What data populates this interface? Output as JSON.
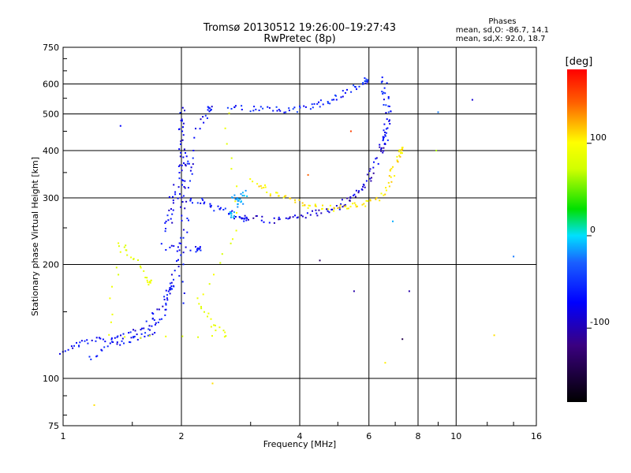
{
  "header": {
    "line1": "Tromsø 20130512 19:26:00–19:27:43",
    "line2": "RwPretec (8p)"
  },
  "stats": {
    "title": "Phases",
    "line_o": "mean, sd,O: -86.7, 14.1",
    "line_x": "mean, sd,X:  92.0, 18.7"
  },
  "chart_data": {
    "type": "scatter",
    "title": "Tromsø 20130512 19:26:00–19:27:43",
    "subtitle": "RwPretec (8p)",
    "xlabel": "Frequency [MHz]",
    "ylabel": "Stationary phase Virtual Height [km]",
    "x_scale": "log",
    "y_scale": "log",
    "xlim": [
      1,
      16
    ],
    "ylim": [
      75,
      750
    ],
    "x_ticks": [
      1,
      2,
      4,
      6,
      8,
      10,
      16
    ],
    "y_ticks": [
      75,
      100,
      200,
      300,
      400,
      500,
      600,
      750
    ],
    "grid": true,
    "colorbar": {
      "label": "[deg]",
      "range": [
        -180,
        180
      ],
      "ticks": [
        100,
        0,
        -100
      ]
    },
    "traces": [
      {
        "phase": -100,
        "points": [
          [
            1.0,
            118
          ],
          [
            1.08,
            123
          ],
          [
            1.2,
            126
          ],
          [
            1.35,
            128
          ],
          [
            1.5,
            131
          ],
          [
            1.65,
            140
          ],
          [
            1.8,
            160
          ],
          [
            1.9,
            185
          ],
          [
            2.0,
            220
          ],
          [
            2.1,
            300
          ],
          [
            2.2,
            450
          ],
          [
            2.35,
            520
          ]
        ]
      },
      {
        "phase": -95,
        "points": [
          [
            1.18,
            113
          ],
          [
            1.3,
            122
          ],
          [
            1.45,
            125
          ],
          [
            1.6,
            130
          ],
          [
            1.7,
            135
          ],
          [
            1.8,
            150
          ],
          [
            1.9,
            175
          ]
        ]
      },
      {
        "phase": -100,
        "points": [
          [
            2.0,
            160
          ],
          [
            2.0,
            250
          ],
          [
            2.0,
            350
          ],
          [
            2.0,
            450
          ],
          [
            2.0,
            520
          ],
          [
            1.95,
            300
          ],
          [
            2.05,
            400
          ],
          [
            2.1,
            350
          ],
          [
            1.85,
            250
          ],
          [
            1.9,
            320
          ],
          [
            1.8,
            220
          ],
          [
            2.2,
            220
          ]
        ]
      },
      {
        "phase": -95,
        "points": [
          [
            2.1,
            300
          ],
          [
            2.3,
            290
          ],
          [
            2.5,
            280
          ],
          [
            2.7,
            270
          ],
          [
            2.9,
            265
          ]
        ]
      },
      {
        "phase": -90,
        "points": [
          [
            2.6,
            520
          ],
          [
            3.0,
            515
          ],
          [
            3.4,
            512
          ],
          [
            3.8,
            513
          ],
          [
            4.2,
            520
          ],
          [
            4.6,
            535
          ],
          [
            5.0,
            555
          ],
          [
            5.5,
            585
          ],
          [
            5.9,
            615
          ]
        ]
      },
      {
        "phase": -110,
        "points": [
          [
            3.0,
            265
          ],
          [
            3.4,
            262
          ],
          [
            3.8,
            265
          ],
          [
            4.2,
            270
          ],
          [
            4.6,
            277
          ],
          [
            5.0,
            285
          ],
          [
            5.3,
            295
          ],
          [
            5.6,
            310
          ],
          [
            5.9,
            330
          ],
          [
            6.2,
            360
          ],
          [
            6.5,
            410
          ]
        ]
      },
      {
        "phase": -95,
        "points": [
          [
            6.5,
            620
          ],
          [
            6.6,
            570
          ],
          [
            6.7,
            520
          ],
          [
            6.7,
            470
          ],
          [
            6.6,
            430
          ]
        ]
      },
      {
        "phase": 105,
        "points": [
          [
            3.0,
            335
          ],
          [
            3.3,
            315
          ],
          [
            3.6,
            300
          ],
          [
            4.0,
            290
          ],
          [
            4.4,
            285
          ],
          [
            4.9,
            282
          ],
          [
            5.3,
            285
          ],
          [
            5.8,
            290
          ],
          [
            6.3,
            300
          ],
          [
            6.8,
            330
          ],
          [
            7.0,
            370
          ],
          [
            7.2,
            400
          ]
        ]
      },
      {
        "phase": 80,
        "points": [
          [
            2.6,
            500
          ],
          [
            2.8,
            250
          ],
          [
            2.2,
            160
          ],
          [
            2.4,
            140
          ],
          [
            2.6,
            130
          ],
          [
            1.3,
            130
          ],
          [
            1.4,
            230
          ],
          [
            1.5,
            210
          ],
          [
            1.65,
            180
          ]
        ]
      },
      {
        "phase": -40,
        "points": [
          [
            2.7,
            300
          ],
          [
            2.8,
            290
          ],
          [
            2.9,
            310
          ],
          [
            2.7,
            270
          ]
        ]
      }
    ],
    "scattered_points": [
      {
        "x": 1.4,
        "y": 465,
        "phase": -100
      },
      {
        "x": 11.0,
        "y": 545,
        "phase": -110
      },
      {
        "x": 14.0,
        "y": 210,
        "phase": -60
      },
      {
        "x": 12.5,
        "y": 130,
        "phase": 110
      },
      {
        "x": 8.9,
        "y": 400,
        "phase": 50
      },
      {
        "x": 6.9,
        "y": 260,
        "phase": -40
      },
      {
        "x": 4.5,
        "y": 205,
        "phase": -140
      },
      {
        "x": 5.5,
        "y": 170,
        "phase": -120
      },
      {
        "x": 7.6,
        "y": 170,
        "phase": -120
      },
      {
        "x": 7.3,
        "y": 127,
        "phase": -150
      },
      {
        "x": 6.6,
        "y": 110,
        "phase": 105
      },
      {
        "x": 2.4,
        "y": 97,
        "phase": 110
      },
      {
        "x": 1.2,
        "y": 85,
        "phase": 110
      },
      {
        "x": 5.4,
        "y": 450,
        "phase": 160
      },
      {
        "x": 4.2,
        "y": 345,
        "phase": 150
      },
      {
        "x": 9.0,
        "y": 505,
        "phase": -60
      }
    ]
  }
}
